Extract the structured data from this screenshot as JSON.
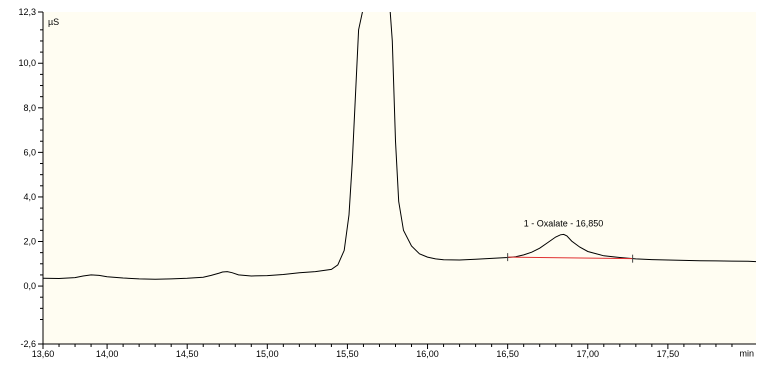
{
  "chart_data": {
    "type": "line",
    "xlabel": "min",
    "ylabel": "µS",
    "xlim": [
      13.6,
      18.05
    ],
    "ylim": [
      -2.6,
      12.3
    ],
    "x_ticks": [
      13.6,
      14.0,
      14.5,
      15.0,
      15.5,
      16.0,
      16.5,
      17.0,
      17.5
    ],
    "x_tick_labels": [
      "13,60",
      "14,00",
      "14,50",
      "15,00",
      "15,50",
      "16,00",
      "16,50",
      "17,00",
      "17,50"
    ],
    "y_ticks": [
      -2.6,
      0.0,
      2.0,
      4.0,
      6.0,
      8.0,
      10.0,
      12.3
    ],
    "y_tick_labels": [
      "-2,6",
      "0,0",
      "2,0",
      "4,0",
      "6,0",
      "8,0",
      "10,0",
      "12,3"
    ],
    "grid": false,
    "colors": {
      "plot_background": "#fffdf2",
      "trace": "#000000",
      "baseline": "#e03030",
      "axis": "#000000"
    },
    "series": [
      {
        "x": [
          13.6,
          13.7,
          13.8,
          13.85,
          13.9,
          13.95,
          14.0,
          14.1,
          14.2,
          14.3,
          14.4,
          14.5,
          14.6,
          14.65,
          14.7,
          14.72,
          14.75,
          14.78,
          14.82,
          14.9,
          15.0,
          15.1,
          15.2,
          15.3,
          15.4,
          15.44,
          15.48,
          15.51,
          15.53,
          15.55,
          15.57,
          15.6,
          15.62,
          15.64,
          15.66,
          15.68,
          15.7,
          15.72,
          15.74,
          15.76,
          15.78,
          15.8,
          15.82,
          15.85,
          15.9,
          15.95,
          16.0,
          16.05,
          16.1,
          16.2,
          16.3,
          16.4,
          16.5,
          16.55,
          16.6,
          16.65,
          16.7,
          16.75,
          16.8,
          16.83,
          16.85,
          16.87,
          16.9,
          16.95,
          17.0,
          17.1,
          17.2,
          17.3,
          17.4,
          17.5,
          17.6,
          17.7,
          17.8,
          17.9,
          18.0,
          18.05
        ],
        "y": [
          0.35,
          0.34,
          0.38,
          0.45,
          0.5,
          0.48,
          0.42,
          0.36,
          0.32,
          0.31,
          0.32,
          0.35,
          0.4,
          0.48,
          0.58,
          0.63,
          0.65,
          0.6,
          0.5,
          0.45,
          0.47,
          0.52,
          0.6,
          0.65,
          0.75,
          0.95,
          1.6,
          3.2,
          5.5,
          8.5,
          11.5,
          12.5,
          13.0,
          13.0,
          13.0,
          13.0,
          13.0,
          13.0,
          13.0,
          13.0,
          11.0,
          6.5,
          3.8,
          2.5,
          1.8,
          1.45,
          1.3,
          1.22,
          1.18,
          1.17,
          1.2,
          1.24,
          1.28,
          1.32,
          1.4,
          1.52,
          1.7,
          1.95,
          2.2,
          2.3,
          2.32,
          2.25,
          2.02,
          1.75,
          1.55,
          1.36,
          1.28,
          1.22,
          1.19,
          1.17,
          1.15,
          1.14,
          1.13,
          1.12,
          1.11,
          1.1
        ]
      }
    ],
    "baseline": {
      "x": [
        16.5,
        17.28
      ],
      "y": [
        1.3,
        1.23
      ]
    },
    "peak_annotation": {
      "text": "1 - Oxalate - 16,850",
      "x": 16.85,
      "y": 2.32
    }
  }
}
